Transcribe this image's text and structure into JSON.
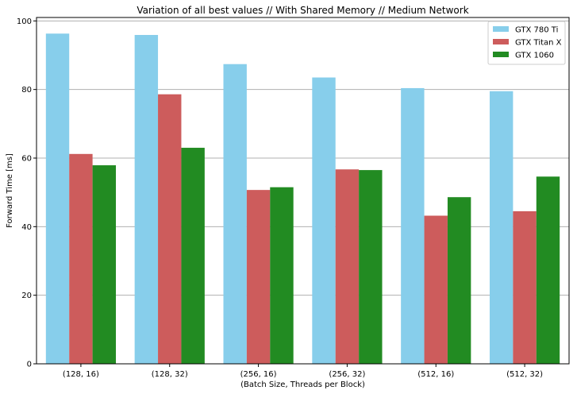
{
  "chart_data": {
    "type": "bar",
    "title": "Variation of all best values // With Shared Memory // Medium Network",
    "xlabel": "(Batch Size, Threads per Block)",
    "ylabel": "Forward Time [ms]",
    "categories": [
      "(128, 16)",
      "(128, 32)",
      "(256, 16)",
      "(256, 32)",
      "(512, 16)",
      "(512, 32)"
    ],
    "series": [
      {
        "name": "GTX 780 Ti",
        "color": "#87ceeb",
        "values": [
          96.3,
          95.9,
          87.4,
          83.5,
          80.4,
          79.5
        ]
      },
      {
        "name": "GTX Titan X",
        "color": "#cd5c5c",
        "values": [
          61.2,
          78.6,
          50.7,
          56.7,
          43.2,
          44.5
        ]
      },
      {
        "name": "GTX 1060",
        "color": "#228b22",
        "values": [
          57.9,
          63.0,
          51.5,
          56.5,
          48.6,
          54.6
        ]
      }
    ],
    "ylim": [
      0,
      101
    ],
    "yticks": [
      0,
      20,
      40,
      60,
      80,
      100
    ],
    "grid": "horizontal",
    "legend_position": "top-right"
  }
}
